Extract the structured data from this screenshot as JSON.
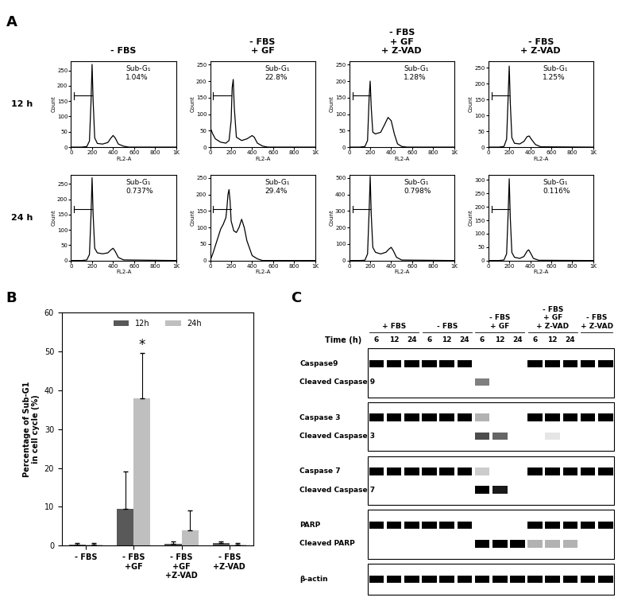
{
  "panel_labels": [
    "A",
    "B",
    "C"
  ],
  "panel_a": {
    "column_titles": [
      "- FBS",
      "- FBS\n+ GF",
      "- FBS\n+ GF\n+ Z-VAD",
      "- FBS\n+ Z-VAD"
    ],
    "row_titles": [
      "12 h",
      "24 h"
    ]
  },
  "chart_data": [
    {
      "type": "line",
      "color": "#000000",
      "annotation": "Sub-G₁\n1.04%",
      "x": [
        0,
        100,
        150,
        175,
        190,
        200,
        210,
        225,
        250,
        300,
        350,
        380,
        400,
        420,
        450,
        500,
        550,
        600,
        1000
      ],
      "values": [
        0,
        0,
        2,
        20,
        150,
        270,
        150,
        30,
        12,
        10,
        15,
        30,
        38,
        30,
        10,
        3,
        0,
        0,
        0
      ],
      "xlim": [
        0,
        1000
      ],
      "xticks": [
        0,
        200,
        400,
        600,
        800,
        {
          "value": 1000,
          "label": "1K"
        }
      ],
      "ylim": [
        0,
        280
      ],
      "yticks": [
        0,
        50,
        100,
        150,
        200,
        250
      ],
      "x_label": "FL2-A",
      "y_label": "Count"
    },
    {
      "type": "line",
      "color": "#000000",
      "annotation": "Sub-G₁\n22.8%",
      "x": [
        0,
        25,
        50,
        100,
        150,
        180,
        200,
        210,
        220,
        230,
        250,
        300,
        350,
        400,
        420,
        450,
        500,
        550,
        1000
      ],
      "values": [
        60,
        40,
        25,
        15,
        12,
        20,
        80,
        180,
        205,
        120,
        30,
        20,
        25,
        35,
        30,
        12,
        3,
        0,
        0
      ],
      "xlim": [
        0,
        1000
      ],
      "xticks": [
        0,
        200,
        400,
        600,
        800,
        {
          "value": 1000,
          "label": "1K"
        }
      ],
      "ylim": [
        0,
        260
      ],
      "yticks": [
        0,
        50,
        100,
        150,
        200,
        250
      ],
      "x_label": "FL2-A",
      "y_label": "Count"
    },
    {
      "type": "line",
      "color": "#000000",
      "annotation": "Sub-G₁\n1.28%",
      "x": [
        0,
        100,
        150,
        175,
        190,
        200,
        210,
        225,
        250,
        300,
        340,
        370,
        400,
        430,
        460,
        500,
        550,
        1000
      ],
      "values": [
        0,
        0,
        2,
        20,
        150,
        200,
        120,
        45,
        40,
        45,
        70,
        90,
        80,
        40,
        10,
        2,
        0,
        0
      ],
      "xlim": [
        0,
        1000
      ],
      "xticks": [
        0,
        200,
        400,
        600,
        800,
        {
          "value": 1000,
          "label": "1K"
        }
      ],
      "ylim": [
        0,
        260
      ],
      "yticks": [
        0,
        50,
        100,
        150,
        200,
        250
      ],
      "x_label": "FL2-A",
      "y_label": "Count"
    },
    {
      "type": "line",
      "color": "#000000",
      "annotation": "Sub-G₁\n1.25%",
      "x": [
        0,
        100,
        150,
        175,
        190,
        200,
        210,
        225,
        250,
        300,
        340,
        370,
        390,
        410,
        450,
        500,
        1000
      ],
      "values": [
        0,
        0,
        2,
        25,
        160,
        255,
        140,
        30,
        12,
        10,
        18,
        33,
        35,
        25,
        8,
        1,
        0
      ],
      "xlim": [
        0,
        1000
      ],
      "xticks": [
        0,
        200,
        400,
        600,
        800,
        {
          "value": 1000,
          "label": "1K"
        }
      ],
      "ylim": [
        0,
        270
      ],
      "yticks": [
        0,
        50,
        100,
        150,
        200,
        250
      ],
      "x_label": "FL2-A",
      "y_label": "Count"
    },
    {
      "type": "line",
      "color": "#000000",
      "annotation": "Sub-G₁\n0.737%",
      "x": [
        0,
        100,
        150,
        175,
        190,
        200,
        210,
        225,
        250,
        300,
        350,
        380,
        400,
        420,
        450,
        500,
        1000
      ],
      "values": [
        0,
        0,
        2,
        20,
        150,
        270,
        150,
        40,
        25,
        22,
        25,
        35,
        40,
        30,
        10,
        2,
        0
      ],
      "xlim": [
        0,
        1000
      ],
      "xticks": [
        0,
        200,
        400,
        600,
        800,
        {
          "value": 1000,
          "label": "1K"
        }
      ],
      "ylim": [
        0,
        280
      ],
      "yticks": [
        0,
        50,
        100,
        150,
        200,
        250
      ],
      "x_label": "FL2-A",
      "y_label": "Count"
    },
    {
      "type": "line",
      "color": "#000000",
      "annotation": "Sub-G₁\n29.4%",
      "x": [
        0,
        25,
        50,
        75,
        100,
        125,
        150,
        160,
        170,
        180,
        190,
        200,
        225,
        250,
        275,
        300,
        325,
        350,
        400,
        450,
        500,
        1000
      ],
      "values": [
        0,
        20,
        45,
        70,
        95,
        110,
        130,
        160,
        200,
        215,
        180,
        120,
        90,
        85,
        100,
        125,
        100,
        60,
        15,
        5,
        0,
        0
      ],
      "xlim": [
        0,
        1000
      ],
      "xticks": [
        0,
        200,
        400,
        600,
        800,
        {
          "value": 1000,
          "label": "1K"
        }
      ],
      "ylim": [
        0,
        260
      ],
      "yticks": [
        0,
        50,
        100,
        150,
        200,
        250
      ],
      "x_label": "FL2-A",
      "y_label": "Count"
    },
    {
      "type": "line",
      "color": "#000000",
      "annotation": "Sub-G₁\n0.798%",
      "x": [
        0,
        100,
        150,
        175,
        190,
        200,
        210,
        225,
        250,
        300,
        350,
        380,
        400,
        420,
        450,
        500,
        1000
      ],
      "values": [
        0,
        0,
        2,
        40,
        300,
        510,
        280,
        80,
        50,
        40,
        50,
        70,
        80,
        60,
        20,
        3,
        0
      ],
      "xlim": [
        0,
        1000
      ],
      "xticks": [
        0,
        200,
        400,
        600,
        800,
        {
          "value": 1000,
          "label": "1K"
        }
      ],
      "ylim": [
        0,
        520
      ],
      "yticks": [
        0,
        100,
        200,
        300,
        400,
        500
      ],
      "x_label": "FL2-A",
      "y_label": "Count"
    },
    {
      "type": "line",
      "color": "#000000",
      "annotation": "Sub-G₁\n0.116%",
      "x": [
        0,
        100,
        150,
        175,
        190,
        200,
        210,
        225,
        250,
        300,
        340,
        370,
        385,
        400,
        430,
        480,
        1000
      ],
      "values": [
        0,
        0,
        2,
        25,
        180,
        305,
        160,
        30,
        12,
        8,
        15,
        35,
        40,
        30,
        8,
        1,
        0
      ],
      "xlim": [
        0,
        1000
      ],
      "xticks": [
        0,
        200,
        400,
        600,
        800,
        {
          "value": 1000,
          "label": "1K"
        }
      ],
      "ylim": [
        0,
        320
      ],
      "yticks": [
        0,
        50,
        100,
        150,
        200,
        250,
        300
      ],
      "x_label": "FL2-A",
      "y_label": "Count"
    },
    {
      "type": "bar",
      "categories": [
        "- FBS",
        "- FBS\n+GF",
        "- FBS\n+GF\n+Z-VAD",
        "- FBS\n+Z-VAD"
      ],
      "series": [
        {
          "name": "12h",
          "color": "#595959",
          "values": [
            0.3,
            9.5,
            0.5,
            0.6
          ],
          "errors": [
            0.4,
            9.5,
            0.5,
            0.4
          ]
        },
        {
          "name": "24h",
          "color": "#bfbfbf",
          "values": [
            0.3,
            38,
            4,
            0.3
          ],
          "errors": [
            0.4,
            11.5,
            5,
            0.3
          ]
        }
      ],
      "ylim": [
        0,
        60
      ],
      "yticks": [
        0,
        10,
        20,
        30,
        40,
        50,
        60
      ],
      "y_label": "Percentage of Sub-G1\nin cell cycle (%)",
      "legend": "upper center",
      "annotations": [
        {
          "text": "*",
          "category": 1,
          "series": "24h"
        }
      ]
    }
  ],
  "blot": {
    "time_label": "Time (h)",
    "groups": [
      {
        "label": "+ FBS",
        "lanes": 3
      },
      {
        "label": "- FBS",
        "lanes": 3
      },
      {
        "label": "- FBS\n+ GF",
        "lanes": 3
      },
      {
        "label": "- FBS\n+ GF\n+ Z-VAD",
        "lanes": 3
      },
      {
        "label": "- FBS\n+ Z-VAD",
        "lanes": 2
      }
    ],
    "lane_labels": [
      6,
      12,
      24,
      6,
      12,
      24,
      6,
      12,
      24,
      6,
      12,
      24,
      null,
      null
    ],
    "blocks": [
      {
        "rows": [
          {
            "label": "Caspase9",
            "bands": [
              1,
              1,
              1,
              1,
              1,
              1,
              0,
              0,
              0,
              1,
              1,
              1,
              1,
              1
            ]
          },
          {
            "label": "Cleaved Caspase 9",
            "bands": [
              0,
              0,
              0,
              0,
              0,
              0,
              0.5,
              0,
              0,
              0,
              0,
              0,
              0,
              0
            ]
          }
        ]
      },
      {
        "rows": [
          {
            "label": "Caspase 3",
            "bands": [
              1,
              1,
              1,
              1,
              1,
              1,
              0.3,
              0,
              0,
              1,
              1,
              1,
              1,
              1
            ]
          },
          {
            "label": "Cleaved Caspase 3",
            "bands": [
              0,
              0,
              0,
              0,
              0,
              0,
              0.7,
              0.6,
              0,
              0,
              0.1,
              0,
              0,
              0
            ]
          }
        ]
      },
      {
        "rows": [
          {
            "label": "Caspase 7",
            "bands": [
              1,
              1,
              1,
              1,
              1,
              1,
              0.2,
              0,
              0,
              1,
              1,
              1,
              1,
              1
            ]
          },
          {
            "label": "Cleaved Caspase 7",
            "bands": [
              0,
              0,
              0,
              0,
              0,
              0,
              1,
              0.9,
              0,
              0,
              0,
              0,
              0,
              0
            ]
          }
        ]
      },
      {
        "rows": [
          {
            "label": "PARP",
            "bands": [
              1,
              1,
              1,
              1,
              1,
              1,
              0,
              0,
              0,
              1,
              1,
              1,
              1,
              1
            ]
          },
          {
            "label": "Cleaved PARP",
            "bands": [
              0,
              0,
              0,
              0,
              0,
              0,
              1,
              1,
              1,
              0.3,
              0.3,
              0.3,
              0,
              0
            ]
          }
        ]
      },
      {
        "rows": [
          {
            "label": "β-actin",
            "bands": [
              1,
              1,
              1,
              1,
              1,
              1,
              1,
              1,
              1,
              1,
              1,
              1,
              1,
              1
            ]
          }
        ]
      }
    ]
  }
}
